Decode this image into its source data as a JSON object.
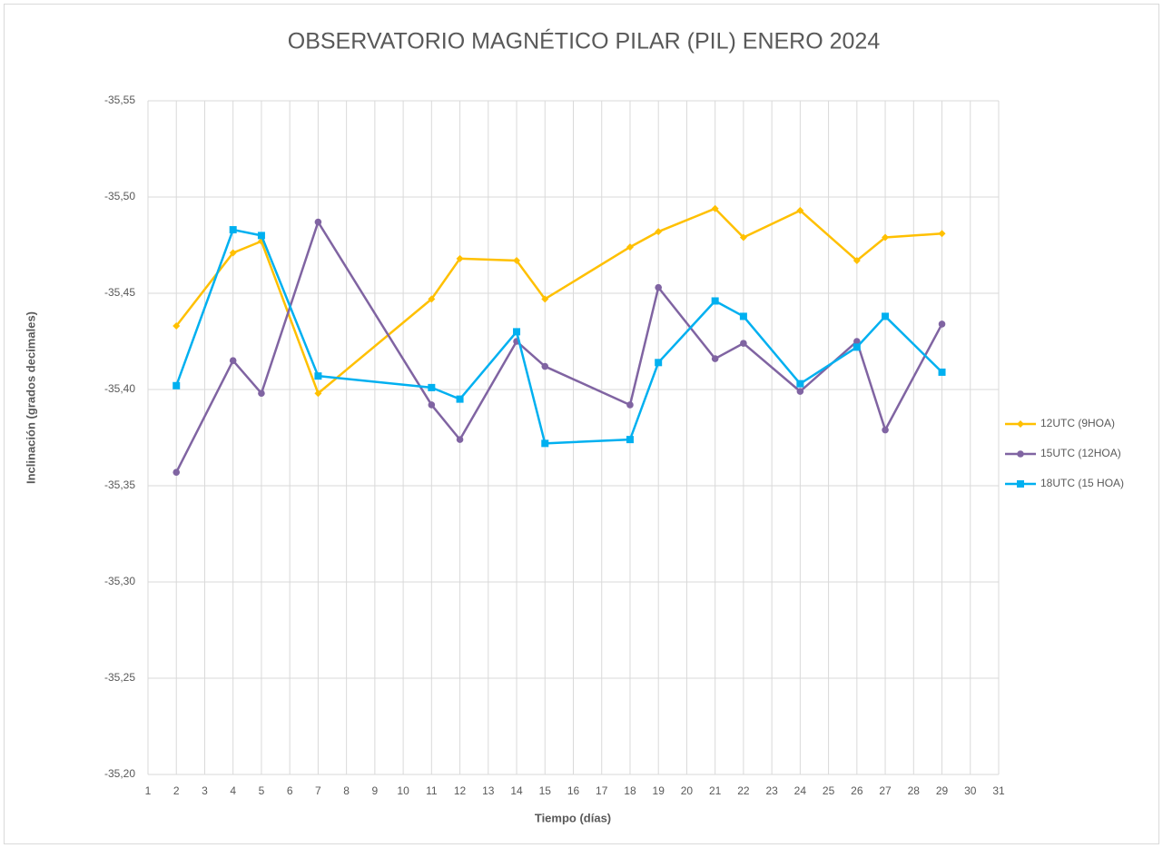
{
  "chart_data": {
    "type": "line",
    "title": "OBSERVATORIO MAGNÉTICO PILAR (PIL) ENERO 2024",
    "x_label": "Tiempo (días)",
    "y_label": "Inclinación (grados decimales)",
    "x": [
      2,
      4,
      5,
      7,
      11,
      12,
      14,
      15,
      18,
      19,
      21,
      22,
      24,
      26,
      27,
      29
    ],
    "series": [
      {
        "name": "12UTC (9HOA)",
        "color": "#ffc000",
        "marker": "diamond",
        "values": [
          -35.433,
          -35.471,
          -35.477,
          -35.398,
          -35.447,
          -35.468,
          -35.467,
          -35.447,
          -35.474,
          -35.482,
          -35.494,
          -35.479,
          -35.493,
          -35.467,
          -35.479,
          -35.481
        ]
      },
      {
        "name": "15UTC (12HOA)",
        "color": "#8064a2",
        "marker": "circle",
        "values": [
          -35.357,
          -35.415,
          -35.398,
          -35.487,
          -35.392,
          -35.374,
          -35.425,
          -35.412,
          -35.392,
          -35.453,
          -35.416,
          -35.424,
          -35.399,
          -35.425,
          -35.379,
          -35.434
        ]
      },
      {
        "name": "18UTC (15 HOA)",
        "color": "#00b0f0",
        "marker": "square",
        "values": [
          -35.402,
          -35.483,
          -35.48,
          -35.407,
          -35.401,
          -35.395,
          -35.43,
          -35.372,
          -35.374,
          -35.414,
          -35.446,
          -35.438,
          -35.403,
          -35.422,
          -35.438,
          -35.409
        ]
      }
    ],
    "xlim": [
      1,
      31
    ],
    "xticks": [
      1,
      2,
      3,
      4,
      5,
      6,
      7,
      8,
      9,
      10,
      11,
      12,
      13,
      14,
      15,
      16,
      17,
      18,
      19,
      20,
      21,
      22,
      23,
      24,
      25,
      26,
      27,
      28,
      29,
      30,
      31
    ],
    "ylim": [
      -35.55,
      -35.2
    ],
    "y_reversed": true,
    "yticks": [
      {
        "value": -35.55,
        "label": "-35,55"
      },
      {
        "value": -35.5,
        "label": "-35,50"
      },
      {
        "value": -35.45,
        "label": "-35,45"
      },
      {
        "value": -35.4,
        "label": "-35,40"
      },
      {
        "value": -35.35,
        "label": "-35,35"
      },
      {
        "value": -35.3,
        "label": "-35,30"
      },
      {
        "value": -35.25,
        "label": "-35,25"
      },
      {
        "value": -35.2,
        "label": "-35,20"
      }
    ],
    "grid": true,
    "legend": "right"
  }
}
